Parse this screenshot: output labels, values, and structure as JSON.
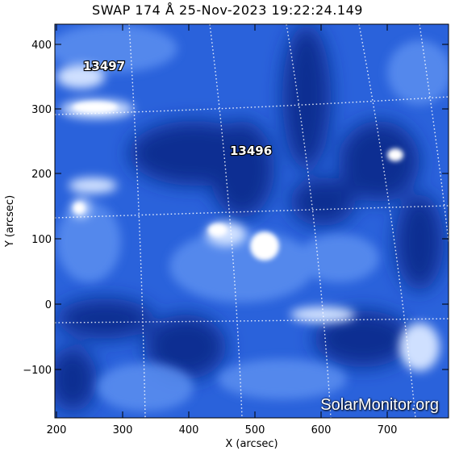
{
  "title": "SWAP  174 Å  25-Nov-2023  19:22:24.149",
  "axes": {
    "xlabel": "X (arcsec)",
    "ylabel": "Y (arcsec)",
    "xticks": [
      "200",
      "300",
      "400",
      "500",
      "600",
      "700"
    ],
    "yticks": [
      "400",
      "300",
      "200",
      "100",
      "0",
      "−100"
    ]
  },
  "active_regions": [
    {
      "label": "13497"
    },
    {
      "label": "13496"
    }
  ],
  "watermark": "SolarMonitor.org",
  "colors": {
    "background": "#1f57d8",
    "bright": "#e8f1ff",
    "dark": "#0a2c8a",
    "grid": "#ffffff"
  }
}
